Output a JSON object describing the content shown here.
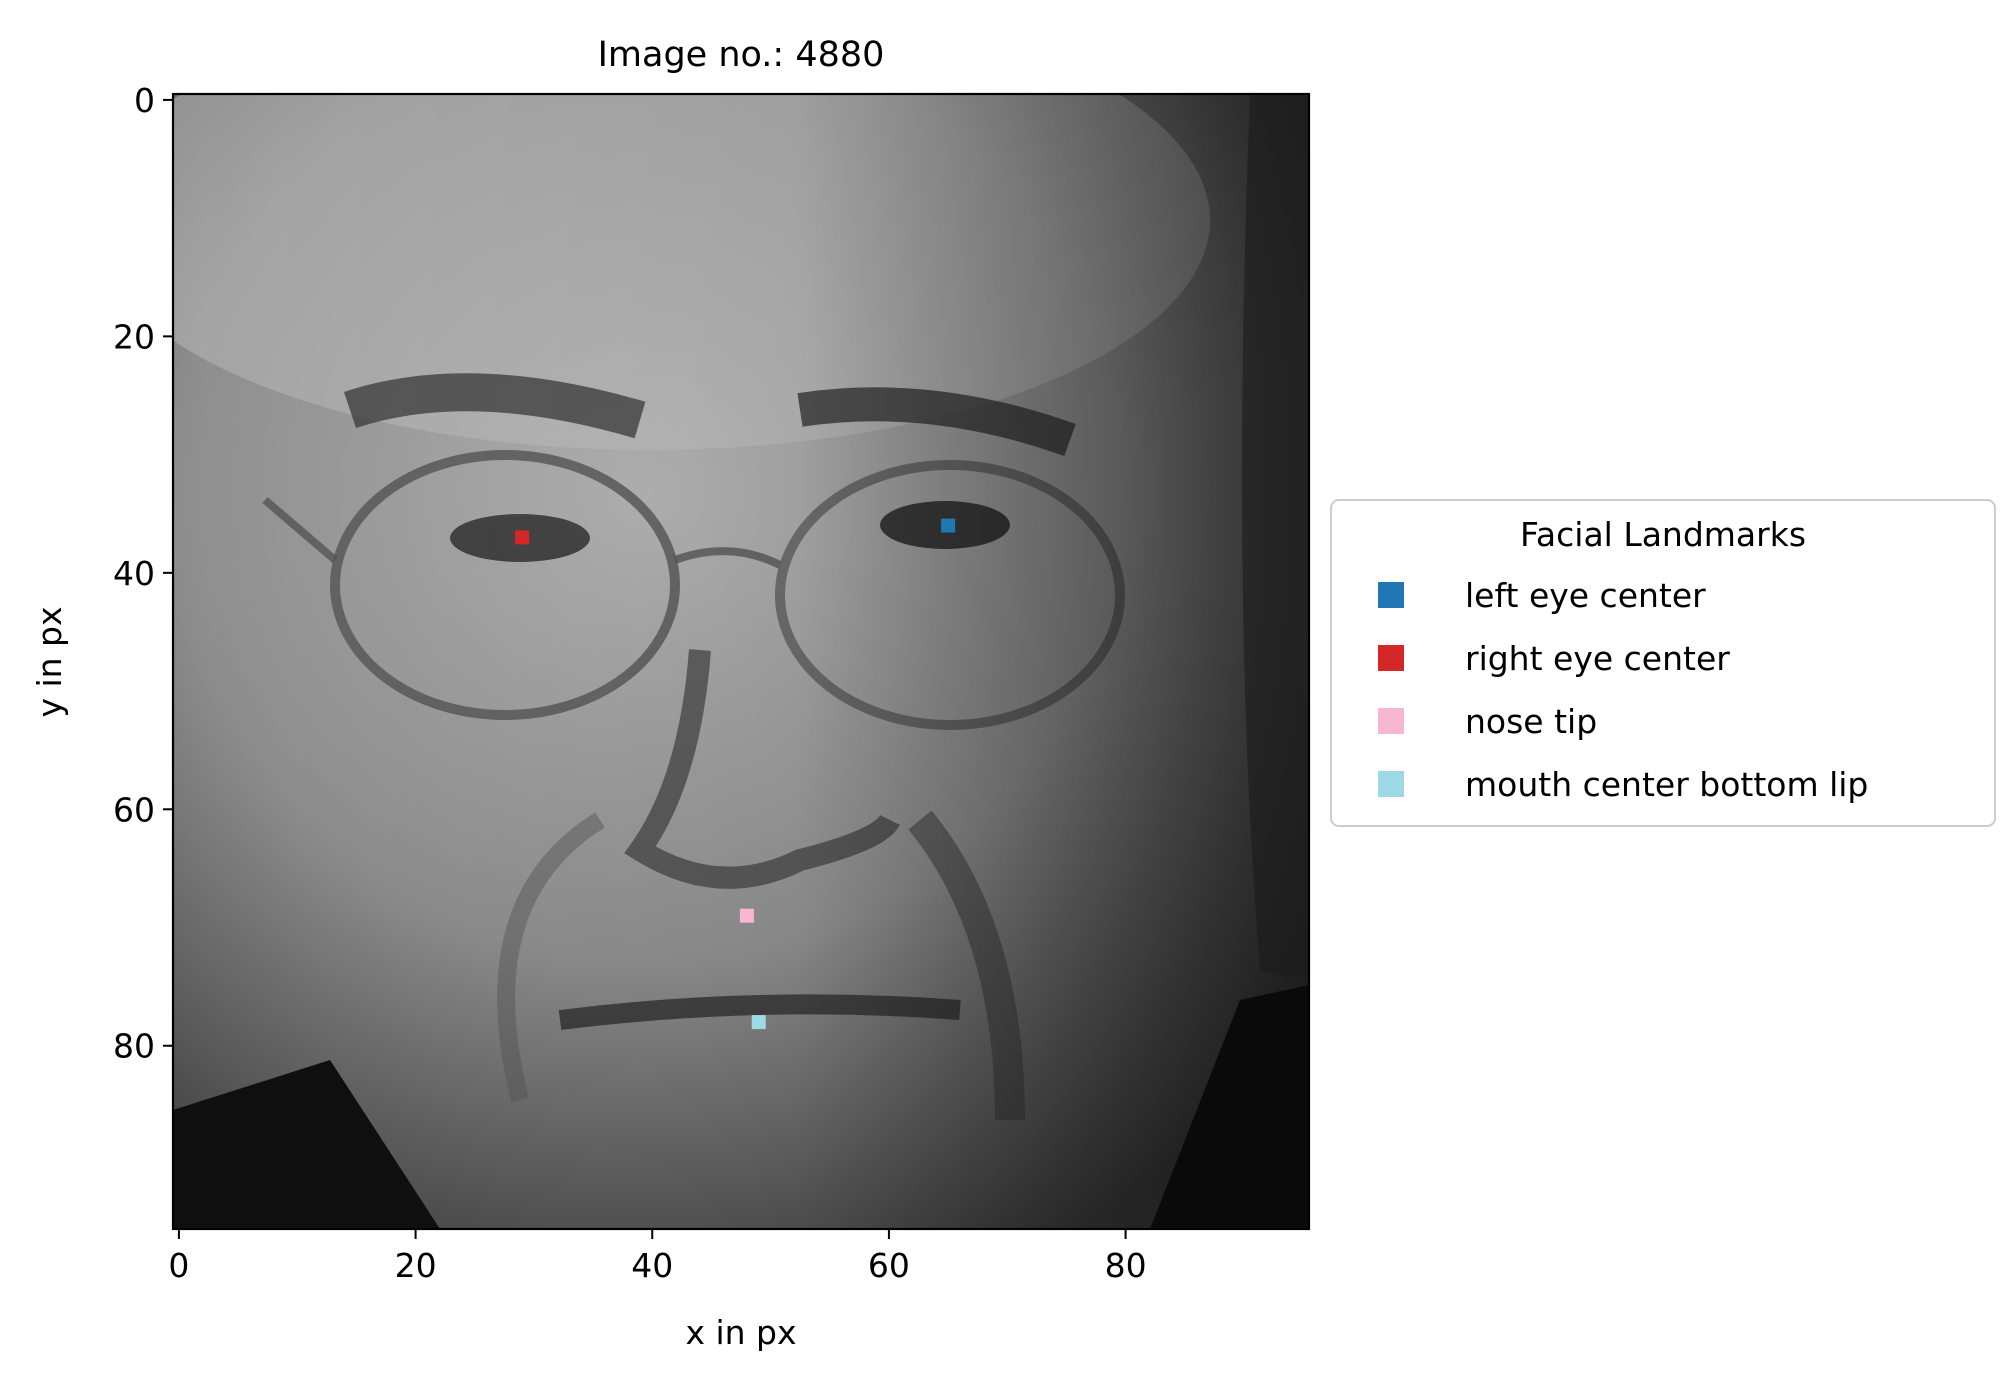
{
  "chart_data": {
    "type": "scatter",
    "title": "Image no.: 4880",
    "xlabel": "x in px",
    "ylabel": "y in px",
    "xlim": [
      -0.5,
      95.5
    ],
    "ylim": [
      95.5,
      -0.5
    ],
    "y_inverted": true,
    "x_ticks": [
      0,
      20,
      40,
      60,
      80
    ],
    "y_ticks": [
      0,
      20,
      40,
      60,
      80
    ],
    "grid": false,
    "background": "grayscale face photograph (96x96 px)",
    "legend": {
      "title": "Facial Landmarks",
      "placement": "center-left outside the plot (right side)"
    },
    "series": [
      {
        "name": "left eye center",
        "color": "#1f77b4",
        "x": 65,
        "y": 36
      },
      {
        "name": "right eye center",
        "color": "#d62728",
        "x": 29,
        "y": 37
      },
      {
        "name": "nose tip",
        "color": "#f7b6d2",
        "x": 48,
        "y": 69
      },
      {
        "name": "mouth center bottom lip",
        "color": "#9edae5",
        "x": 49,
        "y": 78
      }
    ]
  }
}
